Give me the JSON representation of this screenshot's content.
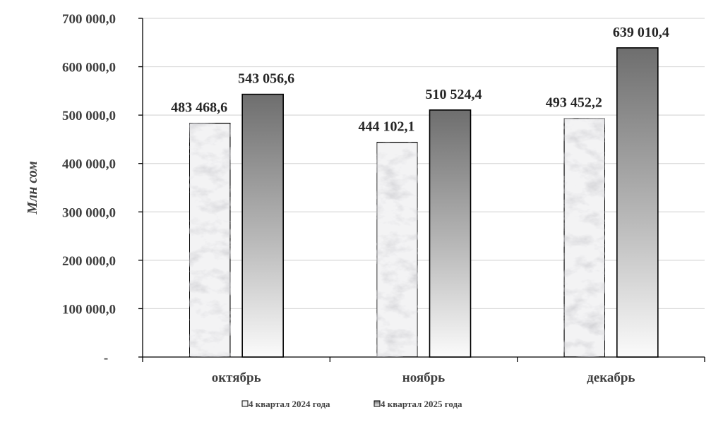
{
  "chart_data": {
    "type": "bar",
    "categories": [
      "октябрь",
      "ноябрь",
      "декабрь"
    ],
    "series": [
      {
        "name": "4 квартал 2024 года",
        "values": [
          483468.6,
          444102.1,
          493452.2
        ],
        "labels": [
          "483 468,6",
          "444 102,1",
          "493 452,2"
        ]
      },
      {
        "name": "4 квартал 2025 года",
        "values": [
          543056.6,
          510524.4,
          639010.4
        ],
        "labels": [
          "543 056,6",
          "510 524,4",
          "639 010,4"
        ]
      }
    ],
    "ylabel": "Млн сом",
    "ylim": [
      0,
      700000
    ],
    "yticks": [
      0,
      100000,
      200000,
      300000,
      400000,
      500000,
      600000,
      700000
    ],
    "ytick_labels": [
      "-",
      "100 000,0",
      "200 000,0",
      "300 000,0",
      "400 000,0",
      "500 000,0",
      "600 000,0",
      "700 000,0"
    ],
    "grid": true,
    "legend_position": "bottom"
  }
}
